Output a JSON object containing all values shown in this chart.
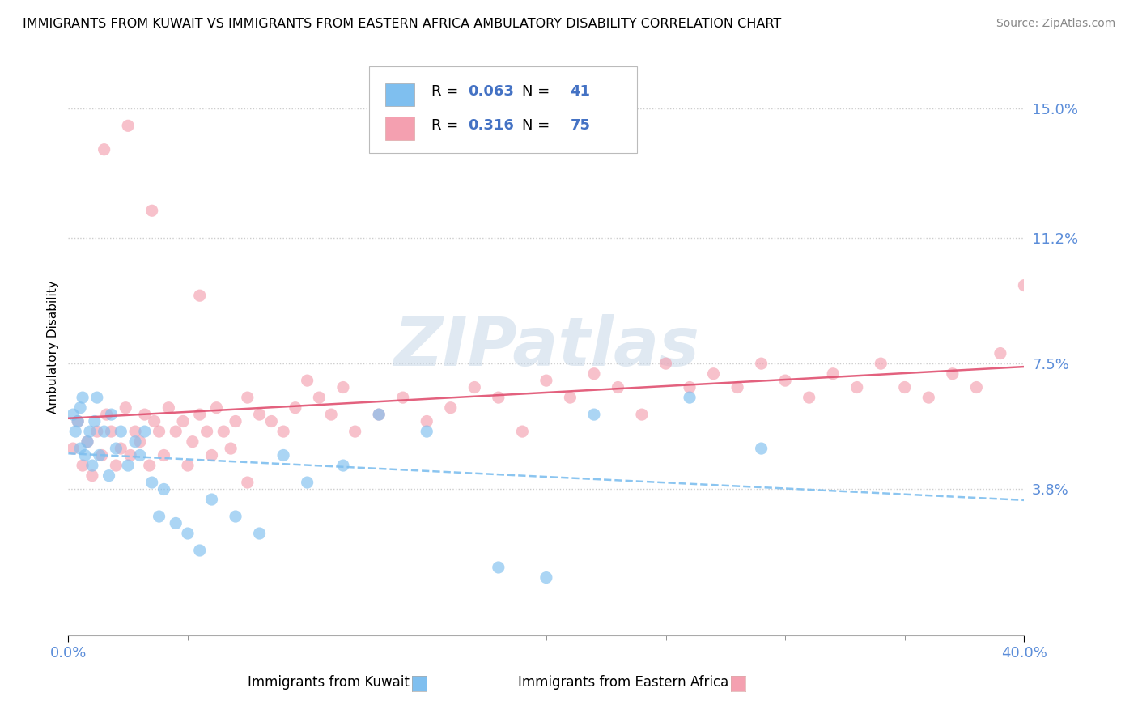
{
  "title": "IMMIGRANTS FROM KUWAIT VS IMMIGRANTS FROM EASTERN AFRICA AMBULATORY DISABILITY CORRELATION CHART",
  "source": "Source: ZipAtlas.com",
  "ylabel_label": "Ambulatory Disability",
  "legend_label1": "Immigrants from Kuwait",
  "legend_label2": "Immigrants from Eastern Africa",
  "r1": "0.063",
  "n1": "41",
  "r2": "0.316",
  "n2": "75",
  "color1": "#7fbfef",
  "color2": "#f4a0b0",
  "watermark": "ZIPatlas",
  "xlim": [
    0.0,
    0.4
  ],
  "ylim": [
    -0.005,
    0.165
  ],
  "ytick_vals": [
    0.038,
    0.075,
    0.112,
    0.15
  ],
  "ytick_labels": [
    "3.8%",
    "7.5%",
    "11.2%",
    "15.0%"
  ],
  "xtick_vals": [
    0.0,
    0.4
  ],
  "xtick_labels": [
    "0.0%",
    "40.0%"
  ],
  "tick_color": "#5b8dd9",
  "line1_x0": 0.0,
  "line1_y0": 0.057,
  "line1_x1": 0.4,
  "line1_y1": 0.076,
  "line2_x0": 0.0,
  "line2_y0": 0.045,
  "line2_x1": 0.4,
  "line2_y1": 0.098
}
